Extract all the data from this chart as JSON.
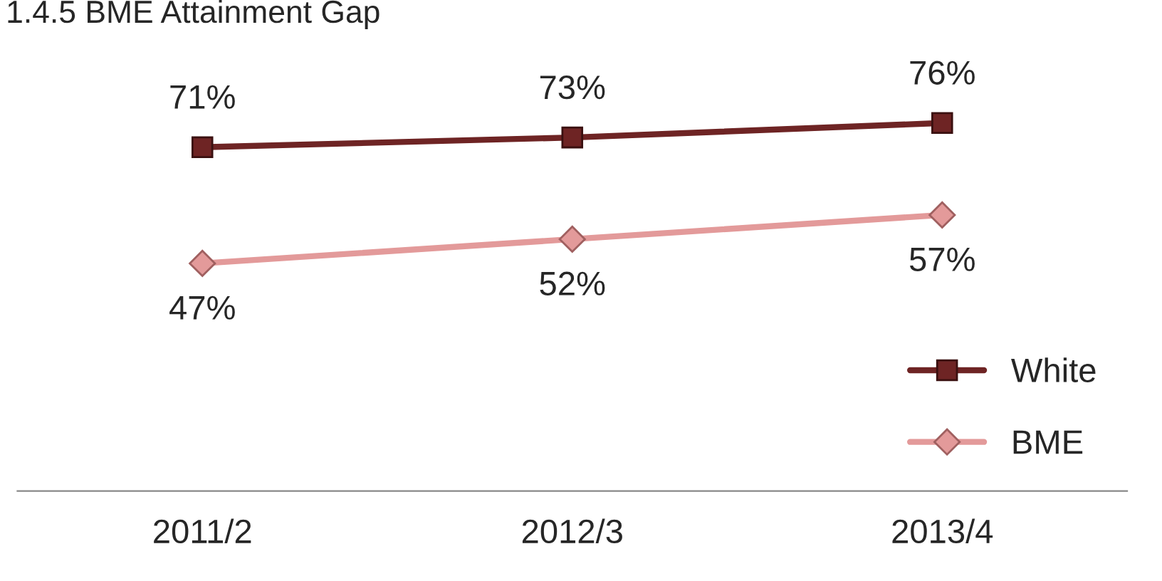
{
  "chart_data": {
    "type": "line",
    "title": "1.4.5 BME Attainment Gap",
    "categories": [
      "2011/2",
      "2012/3",
      "2013/4"
    ],
    "series": [
      {
        "name": "White",
        "color": "#6e2424",
        "values": [
          71,
          73,
          76
        ],
        "marker": "square",
        "value_labels": [
          "71%",
          "73%",
          "76%"
        ]
      },
      {
        "name": "BME",
        "color": "#e39a9a",
        "values": [
          47,
          52,
          57
        ],
        "marker": "diamond",
        "value_labels": [
          "47%",
          "52%",
          "57%"
        ]
      }
    ],
    "legend": "bottom right",
    "grid": false,
    "tick_labels": "x"
  }
}
